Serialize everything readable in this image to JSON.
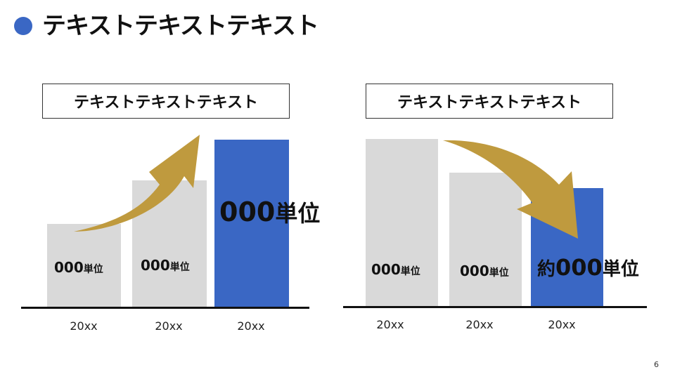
{
  "slide": {
    "title": "テキストテキストテキスト",
    "page_number": "6",
    "accent_color": "#3a67c4",
    "arrow_color": "#bf9a3e",
    "bar_gray_color": "#d9d9d9"
  },
  "left_panel": {
    "label": "テキストテキストテキスト",
    "trend": "up",
    "bars": [
      {
        "year": "20xx",
        "value_num": "000",
        "value_unit": "単位",
        "highlight": false
      },
      {
        "year": "20xx",
        "value_num": "000",
        "value_unit": "単位",
        "highlight": false
      },
      {
        "year": "20xx",
        "value_num": "000",
        "value_unit": "単位",
        "highlight": true
      }
    ]
  },
  "right_panel": {
    "label": "テキストテキストテキスト",
    "trend": "down",
    "bars": [
      {
        "year": "20xx",
        "value_num": "000",
        "value_unit": "単位",
        "highlight": false
      },
      {
        "year": "20xx",
        "value_num": "000",
        "value_unit": "単位",
        "highlight": false
      },
      {
        "year": "20xx",
        "value_prefix": "約",
        "value_num": "000",
        "value_unit": "単位",
        "highlight": true
      }
    ]
  }
}
